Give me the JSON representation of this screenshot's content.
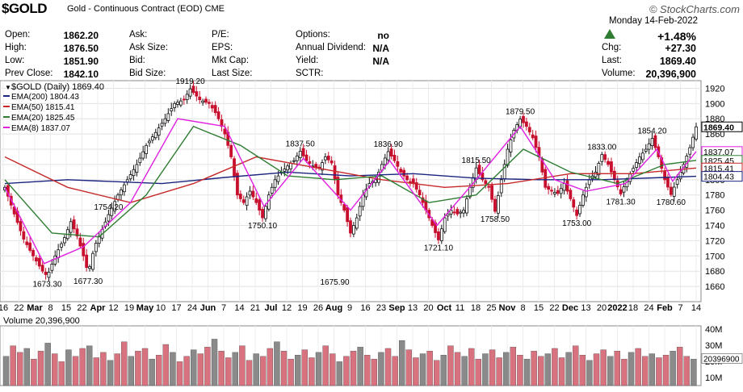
{
  "header": {
    "symbol": "$GOLD",
    "description": "Gold - Continuous Contract (EOD) CME",
    "brand": "© StockCharts.com",
    "date": "Monday   14-Feb-2022",
    "quote_rows": [
      [
        {
          "label": "Open:",
          "value": "1862.20"
        },
        {
          "label": "Ask:",
          "value": ""
        },
        {
          "label": "P/E:",
          "value": ""
        },
        {
          "label": "Options:",
          "value": "no"
        }
      ],
      [
        {
          "label": "High:",
          "value": "1876.50"
        },
        {
          "label": "Ask Size:",
          "value": ""
        },
        {
          "label": "EPS:",
          "value": ""
        },
        {
          "label": "Annual Dividend:",
          "value": "N/A"
        }
      ],
      [
        {
          "label": "Low:",
          "value": "1851.90"
        },
        {
          "label": "Bid:",
          "value": ""
        },
        {
          "label": "Mkt Cap:",
          "value": ""
        },
        {
          "label": "Yield:",
          "value": "N/A"
        }
      ],
      [
        {
          "label": "Prev Close:",
          "value": "1842.10"
        },
        {
          "label": "Bid Size:",
          "value": ""
        },
        {
          "label": "Last Size:",
          "value": ""
        },
        {
          "label": "SCTR:",
          "value": ""
        }
      ]
    ],
    "right_rows": [
      {
        "label": "",
        "value": "+1.48%"
      },
      {
        "label": "Chg:",
        "value": "+27.30"
      },
      {
        "label": "Last:",
        "value": "1869.40"
      },
      {
        "label": "Volume:",
        "value": "20,396,900"
      }
    ],
    "up_color": "#2e7d32"
  },
  "chart_data": {
    "type": "candlestick",
    "title": "$GOLD (Daily) 1869.40",
    "ylim": [
      1640,
      1930
    ],
    "yticks": [
      1660,
      1680,
      1700,
      1720,
      1740,
      1760,
      1780,
      1800,
      1820,
      1840,
      1860,
      1880,
      1900,
      1920
    ],
    "x_ticks": [
      "16",
      "22",
      "Mar",
      "8",
      "15",
      "22",
      "Apr",
      "12",
      "19",
      "May",
      "10",
      "17",
      "24",
      "Jun",
      "7",
      "14",
      "21",
      "Jul",
      "12",
      "19",
      "26",
      "Aug",
      "9",
      "16",
      "23",
      "Sep",
      "13",
      "20",
      "Oct",
      "11",
      "18",
      "25",
      "Nov",
      "8",
      "15",
      "22",
      "Dec",
      "13",
      "20",
      "2022",
      "18",
      "24",
      "Feb",
      "7",
      "14"
    ],
    "legend": [
      {
        "name": "EMA(200) 1804.43",
        "color": "#1a237e"
      },
      {
        "name": "EMA(50) 1815.41",
        "color": "#c62828"
      },
      {
        "name": "EMA(20) 1825.45",
        "color": "#2e7d32"
      },
      {
        "name": "EMA(8) 1837.07",
        "color": "#e020e0"
      }
    ],
    "price_series": [
      [
        0,
        1790
      ],
      [
        6,
        1755
      ],
      [
        12,
        1722
      ],
      [
        18,
        1700
      ],
      [
        24,
        1680
      ],
      [
        27,
        1673.3
      ],
      [
        32,
        1700
      ],
      [
        38,
        1724
      ],
      [
        42,
        1745
      ],
      [
        46,
        1726
      ],
      [
        50,
        1700
      ],
      [
        53,
        1677.3
      ],
      [
        57,
        1712
      ],
      [
        62,
        1735
      ],
      [
        66,
        1754.2
      ],
      [
        72,
        1780
      ],
      [
        78,
        1800
      ],
      [
        84,
        1820
      ],
      [
        90,
        1845
      ],
      [
        96,
        1862
      ],
      [
        102,
        1880
      ],
      [
        108,
        1900
      ],
      [
        114,
        1905
      ],
      [
        118,
        1919.2
      ],
      [
        124,
        1905
      ],
      [
        130,
        1900
      ],
      [
        135,
        1885
      ],
      [
        140,
        1860
      ],
      [
        144,
        1830
      ],
      [
        148,
        1780
      ],
      [
        152,
        1770
      ],
      [
        156,
        1785
      ],
      [
        160,
        1770
      ],
      [
        164,
        1750.1
      ],
      [
        168,
        1780
      ],
      [
        172,
        1800
      ],
      [
        176,
        1810
      ],
      [
        180,
        1818
      ],
      [
        184,
        1825
      ],
      [
        188,
        1837.5
      ],
      [
        192,
        1825
      ],
      [
        196,
        1818
      ],
      [
        200,
        1815
      ],
      [
        204,
        1830
      ],
      [
        208,
        1822
      ],
      [
        212,
        1780
      ],
      [
        216,
        1760
      ],
      [
        220,
        1730
      ],
      [
        224,
        1750
      ],
      [
        228,
        1780
      ],
      [
        232,
        1795
      ],
      [
        236,
        1800
      ],
      [
        240,
        1820
      ],
      [
        244,
        1836.9
      ],
      [
        248,
        1825
      ],
      [
        252,
        1810
      ],
      [
        256,
        1800
      ],
      [
        260,
        1795
      ],
      [
        264,
        1780
      ],
      [
        268,
        1760
      ],
      [
        272,
        1740
      ],
      [
        276,
        1721.1
      ],
      [
        280,
        1750
      ],
      [
        284,
        1760
      ],
      [
        288,
        1755
      ],
      [
        292,
        1760
      ],
      [
        296,
        1790
      ],
      [
        300,
        1815.5
      ],
      [
        304,
        1800
      ],
      [
        308,
        1790
      ],
      [
        312,
        1758.5
      ],
      [
        316,
        1800
      ],
      [
        320,
        1840
      ],
      [
        324,
        1865
      ],
      [
        328,
        1879.5
      ],
      [
        332,
        1870
      ],
      [
        336,
        1855
      ],
      [
        340,
        1830
      ],
      [
        344,
        1790
      ],
      [
        348,
        1785
      ],
      [
        352,
        1782
      ],
      [
        356,
        1795
      ],
      [
        360,
        1775
      ],
      [
        364,
        1753
      ],
      [
        368,
        1780
      ],
      [
        372,
        1800
      ],
      [
        376,
        1810
      ],
      [
        380,
        1833
      ],
      [
        384,
        1820
      ],
      [
        388,
        1800
      ],
      [
        392,
        1781.3
      ],
      [
        396,
        1800
      ],
      [
        400,
        1815
      ],
      [
        404,
        1830
      ],
      [
        408,
        1840
      ],
      [
        412,
        1854.2
      ],
      [
        416,
        1830
      ],
      [
        420,
        1800
      ],
      [
        424,
        1780.6
      ],
      [
        428,
        1800
      ],
      [
        432,
        1820
      ],
      [
        436,
        1842.1
      ],
      [
        440,
        1869.4
      ]
    ],
    "ema200": [
      [
        0,
        1795
      ],
      [
        40,
        1800
      ],
      [
        100,
        1795
      ],
      [
        140,
        1803
      ],
      [
        180,
        1810
      ],
      [
        220,
        1805
      ],
      [
        260,
        1808
      ],
      [
        300,
        1802
      ],
      [
        340,
        1800
      ],
      [
        380,
        1800
      ],
      [
        420,
        1803
      ],
      [
        440,
        1804.43
      ]
    ],
    "ema50": [
      [
        0,
        1830
      ],
      [
        40,
        1790
      ],
      [
        80,
        1770
      ],
      [
        120,
        1795
      ],
      [
        160,
        1830
      ],
      [
        200,
        1815
      ],
      [
        240,
        1800
      ],
      [
        280,
        1790
      ],
      [
        320,
        1795
      ],
      [
        360,
        1808
      ],
      [
        400,
        1808
      ],
      [
        440,
        1815.41
      ]
    ],
    "ema20": [
      [
        0,
        1800
      ],
      [
        30,
        1730
      ],
      [
        60,
        1725
      ],
      [
        90,
        1780
      ],
      [
        120,
        1870
      ],
      [
        150,
        1845
      ],
      [
        180,
        1805
      ],
      [
        210,
        1800
      ],
      [
        240,
        1805
      ],
      [
        270,
        1770
      ],
      [
        300,
        1780
      ],
      [
        330,
        1840
      ],
      [
        360,
        1810
      ],
      [
        390,
        1795
      ],
      [
        420,
        1820
      ],
      [
        440,
        1825.45
      ]
    ],
    "ema8": [
      [
        0,
        1790
      ],
      [
        25,
        1690
      ],
      [
        50,
        1712
      ],
      [
        80,
        1770
      ],
      [
        110,
        1880
      ],
      [
        140,
        1870
      ],
      [
        165,
        1765
      ],
      [
        190,
        1828
      ],
      [
        220,
        1760
      ],
      [
        245,
        1825
      ],
      [
        275,
        1740
      ],
      [
        300,
        1800
      ],
      [
        328,
        1870
      ],
      [
        350,
        1800
      ],
      [
        370,
        1785
      ],
      [
        395,
        1795
      ],
      [
        415,
        1840
      ],
      [
        425,
        1798
      ],
      [
        440,
        1837.07
      ]
    ],
    "annotations": [
      {
        "x": 27,
        "y": 1673.3,
        "text": "1673.30",
        "pos": "below"
      },
      {
        "x": 53,
        "y": 1677.3,
        "text": "1677.30",
        "pos": "below"
      },
      {
        "x": 66,
        "y": 1754.2,
        "text": "1754.20",
        "pos": "above"
      },
      {
        "x": 118,
        "y": 1919.2,
        "text": "1919.20",
        "pos": "above"
      },
      {
        "x": 164,
        "y": 1750.1,
        "text": "1750.10",
        "pos": "below"
      },
      {
        "x": 188,
        "y": 1837.5,
        "text": "1837.50",
        "pos": "above"
      },
      {
        "x": 210,
        "y": 1675.9,
        "text": "1675.90",
        "pos": "below"
      },
      {
        "x": 244,
        "y": 1836.9,
        "text": "1836.90",
        "pos": "above"
      },
      {
        "x": 276,
        "y": 1721.1,
        "text": "1721.10",
        "pos": "below"
      },
      {
        "x": 300,
        "y": 1815.5,
        "text": "1815.50",
        "pos": "above"
      },
      {
        "x": 312,
        "y": 1758.5,
        "text": "1758.50",
        "pos": "below"
      },
      {
        "x": 328,
        "y": 1879.5,
        "text": "1879.50",
        "pos": "above"
      },
      {
        "x": 364,
        "y": 1753.0,
        "text": "1753.00",
        "pos": "below"
      },
      {
        "x": 380,
        "y": 1833.0,
        "text": "1833.00",
        "pos": "above"
      },
      {
        "x": 392,
        "y": 1781.3,
        "text": "1781.30",
        "pos": "below"
      },
      {
        "x": 412,
        "y": 1854.2,
        "text": "1854.20",
        "pos": "above"
      },
      {
        "x": 424,
        "y": 1780.6,
        "text": "1780.60",
        "pos": "below"
      }
    ],
    "price_tags": [
      {
        "value": 1869.4,
        "text": "1869.40",
        "color": "#000000"
      },
      {
        "value": 1837.07,
        "text": "1837.07",
        "color": "#e020e0"
      },
      {
        "value": 1825.45,
        "text": "1825.45",
        "color": "#2e7d32"
      },
      {
        "value": 1815.41,
        "text": "1815.41",
        "color": "#c62828"
      },
      {
        "value": 1804.43,
        "text": "1804.43",
        "color": "#1a237e"
      }
    ],
    "volume": {
      "title": "Volume 20,396,900",
      "ylim": [
        0,
        45
      ],
      "yticks": [
        "40M",
        "30M",
        "20M",
        "10M"
      ],
      "last_tag": "20396900",
      "last_value": 20.4,
      "values": [
        22,
        30,
        25,
        28,
        20,
        26,
        32,
        24,
        18,
        27,
        22,
        28,
        30,
        21,
        25,
        19,
        24,
        33,
        22,
        26,
        28,
        20,
        23,
        31,
        25,
        18,
        22,
        27,
        24,
        29,
        35,
        26,
        21,
        25,
        30,
        19,
        24,
        22,
        28,
        33,
        26,
        20,
        23,
        27,
        21,
        25,
        30,
        24,
        18,
        22,
        26,
        29,
        23,
        20,
        25,
        28,
        22,
        34,
        27,
        21,
        24,
        26,
        19,
        23,
        30,
        25,
        22,
        28,
        20,
        24,
        27,
        21,
        25,
        29,
        23,
        20,
        26,
        22,
        24,
        28,
        21,
        25,
        30,
        23,
        19,
        24,
        27,
        22,
        26,
        20,
        25,
        28,
        22,
        24,
        21,
        23,
        26,
        29,
        22,
        20
      ]
    }
  }
}
